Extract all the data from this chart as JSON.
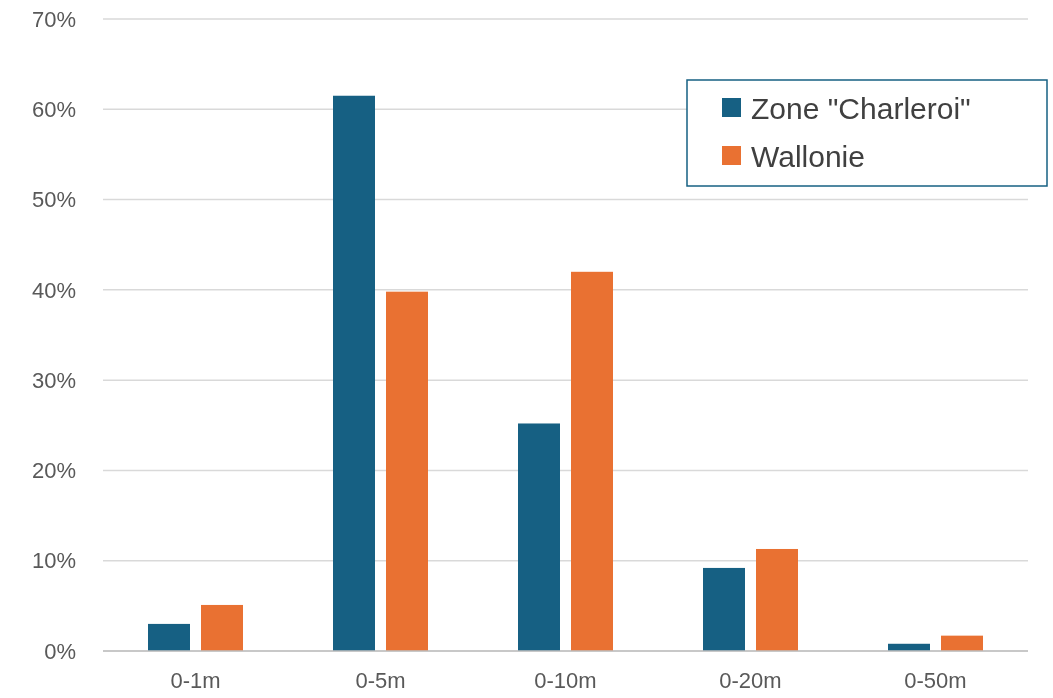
{
  "chart_data": {
    "type": "bar",
    "categories": [
      "0-1m",
      "0-5m",
      "0-10m",
      "0-20m",
      "0-50m"
    ],
    "series": [
      {
        "name": "Zone \"Charleroi\"",
        "color": "#166083",
        "values": [
          3.0,
          61.5,
          25.2,
          9.2,
          0.8
        ]
      },
      {
        "name": "Wallonie",
        "color": "#e97132",
        "values": [
          5.1,
          39.8,
          42.0,
          11.3,
          1.7
        ]
      }
    ],
    "ylim": [
      0,
      70
    ],
    "yticks": [
      {
        "value": 0,
        "label": "0%"
      },
      {
        "value": 10,
        "label": "10%"
      },
      {
        "value": 20,
        "label": "20%"
      },
      {
        "value": 30,
        "label": "30%"
      },
      {
        "value": 40,
        "label": "40%"
      },
      {
        "value": 50,
        "label": "50%"
      },
      {
        "value": 60,
        "label": "60%"
      },
      {
        "value": 70,
        "label": "70%"
      }
    ],
    "grid": "y",
    "legend": "top right"
  }
}
